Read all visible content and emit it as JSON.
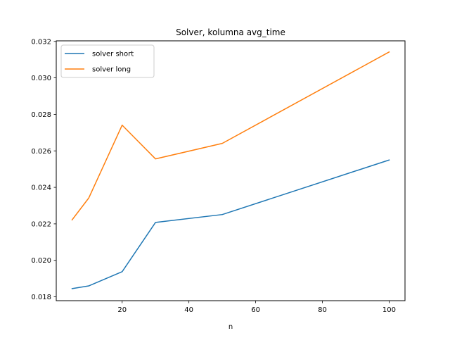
{
  "chart_data": {
    "type": "line",
    "title": "Solver, kolumna avg_time",
    "xlabel": "n",
    "ylabel": "",
    "xlim": [
      0.25,
      104.75
    ],
    "ylim": [
      0.01779,
      0.03203
    ],
    "xticks": [
      20,
      40,
      60,
      80,
      100
    ],
    "yticks": [
      0.018,
      0.02,
      0.022,
      0.024,
      0.026,
      0.028,
      0.03,
      0.032
    ],
    "xtick_labels": [
      "20",
      "40",
      "60",
      "80",
      "100"
    ],
    "ytick_labels": [
      "0.018",
      "0.020",
      "0.022",
      "0.024",
      "0.026",
      "0.028",
      "0.030",
      "0.032"
    ],
    "grid": false,
    "legend_position": "upper-left",
    "series": [
      {
        "name": "solver short",
        "color": "#1f77b4",
        "x": [
          5,
          10,
          20,
          30,
          50,
          100
        ],
        "y": [
          0.01845,
          0.0186,
          0.01938,
          0.02208,
          0.02251,
          0.0255
        ]
      },
      {
        "name": "solver long",
        "color": "#ff7f0e",
        "x": [
          5,
          10,
          20,
          30,
          50,
          100
        ],
        "y": [
          0.02222,
          0.02342,
          0.02741,
          0.02556,
          0.02641,
          0.03142
        ]
      }
    ]
  }
}
